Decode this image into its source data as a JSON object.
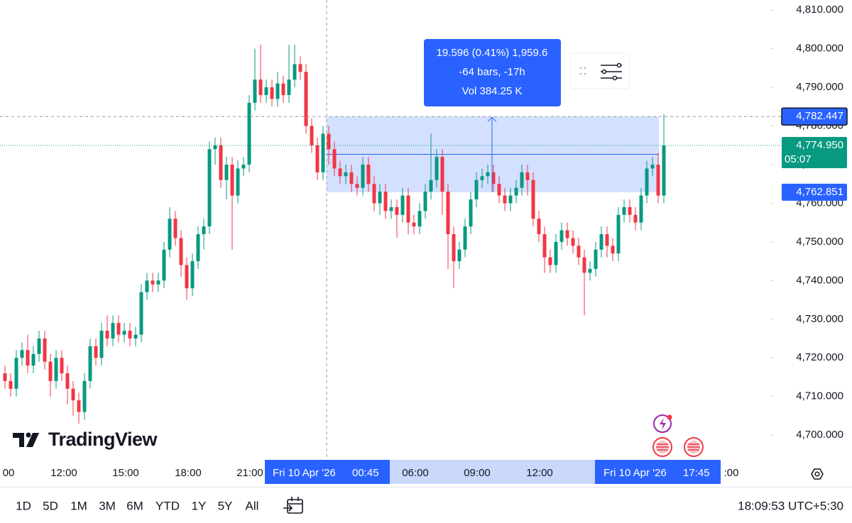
{
  "chart_data": {
    "type": "candlestick",
    "open": [
      4716,
      4714,
      4712,
      4720,
      4722,
      4718,
      4721,
      4725,
      4719,
      4714,
      4720,
      4716,
      4712,
      4709,
      4706,
      4714,
      4723,
      4720,
      4727,
      4725,
      4729,
      4726,
      4727,
      4725,
      4726,
      4737,
      4740,
      4739,
      4740,
      4748,
      4756,
      4751,
      4744,
      4738,
      4745,
      4752,
      4754,
      4774,
      4775,
      4766,
      4770,
      4762,
      4769,
      4770,
      4786,
      4792,
      4788,
      4790,
      4787,
      4791,
      4788,
      4792,
      4796,
      4794,
      4780,
      4775,
      4768,
      4778,
      4774,
      4769,
      4767,
      4768,
      4765,
      4764,
      4770,
      4765,
      4760,
      4763,
      4758,
      4759,
      4757,
      4762,
      4755,
      4754,
      4758,
      4763,
      4766,
      4772,
      4763,
      4752,
      4745,
      4748,
      4754,
      4761,
      4766,
      4767,
      4768,
      4765,
      4762,
      4760,
      4762,
      4764,
      4768,
      4766,
      4756,
      4752,
      4746,
      4744,
      4750,
      4753,
      4751,
      4749,
      4746,
      4742,
      4743,
      4748,
      4752,
      4749,
      4747,
      4757,
      4759,
      4757,
      4755,
      4762,
      4769,
      4770,
      4762
    ],
    "high": [
      4718,
      4716,
      4722,
      4724,
      4726,
      4723,
      4727,
      4727,
      4721,
      4722,
      4722,
      4718,
      4714,
      4711,
      4716,
      4725,
      4725,
      4729,
      4731,
      4731,
      4731,
      4729,
      4729,
      4728,
      4739,
      4742,
      4742,
      4742,
      4750,
      4759,
      4758,
      4753,
      4746,
      4747,
      4754,
      4756,
      4776,
      4777,
      4777,
      4772,
      4772,
      4771,
      4772,
      4788,
      4800,
      4801,
      4792,
      4792,
      4794,
      4793,
      4801,
      4801,
      4798,
      4796,
      4782,
      4777,
      4780,
      4780,
      4776,
      4771,
      4770,
      4770,
      4767,
      4772,
      4772,
      4767,
      4765,
      4765,
      4761,
      4761,
      4764,
      4764,
      4757,
      4760,
      4765,
      4778,
      4774,
      4774,
      4765,
      4754,
      4750,
      4756,
      4763,
      4768,
      4769,
      4770,
      4770,
      4767,
      4764,
      4764,
      4766,
      4770,
      4770,
      4768,
      4758,
      4754,
      4748,
      4752,
      4755,
      4755,
      4753,
      4751,
      4748,
      4745,
      4750,
      4754,
      4754,
      4751,
      4759,
      4761,
      4761,
      4759,
      4764,
      4771,
      4772,
      4773,
      4783
    ],
    "low": [
      4712,
      4710,
      4710,
      4718,
      4716,
      4716,
      4719,
      4717,
      4710,
      4712,
      4714,
      4708,
      4705,
      4703,
      4704,
      4712,
      4718,
      4718,
      4723,
      4723,
      4724,
      4724,
      4723,
      4723,
      4724,
      4735,
      4737,
      4737,
      4738,
      4746,
      4749,
      4741,
      4735,
      4736,
      4743,
      4748,
      4752,
      4770,
      4764,
      4761,
      4748,
      4760,
      4767,
      4768,
      4784,
      4786,
      4786,
      4785,
      4785,
      4786,
      4786,
      4790,
      4792,
      4778,
      4773,
      4766,
      4766,
      4770,
      4767,
      4765,
      4765,
      4763,
      4762,
      4762,
      4763,
      4758,
      4757,
      4756,
      4756,
      4751,
      4755,
      4752,
      4752,
      4752,
      4756,
      4761,
      4764,
      4757,
      4743,
      4738,
      4743,
      4746,
      4752,
      4759,
      4764,
      4765,
      4763,
      4760,
      4758,
      4758,
      4760,
      4762,
      4762,
      4754,
      4750,
      4742,
      4742,
      4742,
      4748,
      4749,
      4747,
      4744,
      4731,
      4740,
      4741,
      4746,
      4746,
      4745,
      4745,
      4755,
      4755,
      4753,
      4753,
      4760,
      4767,
      4760,
      4760
    ],
    "close": [
      4714,
      4712,
      4720,
      4722,
      4718,
      4721,
      4725,
      4719,
      4714,
      4720,
      4716,
      4712,
      4709,
      4706,
      4714,
      4723,
      4720,
      4727,
      4725,
      4729,
      4726,
      4727,
      4725,
      4726,
      4737,
      4740,
      4739,
      4740,
      4748,
      4756,
      4751,
      4744,
      4738,
      4745,
      4752,
      4754,
      4774,
      4775,
      4766,
      4770,
      4762,
      4769,
      4770,
      4786,
      4792,
      4788,
      4790,
      4787,
      4791,
      4788,
      4792,
      4796,
      4794,
      4780,
      4775,
      4768,
      4778,
      4774,
      4769,
      4767,
      4768,
      4765,
      4764,
      4770,
      4765,
      4760,
      4763,
      4758,
      4759,
      4757,
      4762,
      4755,
      4754,
      4758,
      4763,
      4766,
      4772,
      4763,
      4752,
      4745,
      4748,
      4754,
      4761,
      4766,
      4767,
      4768,
      4765,
      4762,
      4760,
      4762,
      4764,
      4768,
      4766,
      4756,
      4752,
      4746,
      4744,
      4750,
      4753,
      4751,
      4749,
      4746,
      4742,
      4743,
      4748,
      4752,
      4749,
      4747,
      4757,
      4759,
      4757,
      4755,
      4762,
      4769,
      4770,
      4762,
      4774.95
    ],
    "up_color": "#089981",
    "down_color": "#f23645",
    "ylim": [
      4693.6,
      4812.6
    ],
    "yticks": [
      {
        "value": 4700,
        "label": "4,700.000"
      },
      {
        "value": 4710,
        "label": "4,710.000"
      },
      {
        "value": 4720,
        "label": "4,720.000"
      },
      {
        "value": 4730,
        "label": "4,730.000"
      },
      {
        "value": 4740,
        "label": "4,740.000"
      },
      {
        "value": 4750,
        "label": "4,750.000"
      },
      {
        "value": 4760,
        "label": "4,760.000"
      },
      {
        "value": 4770,
        "label": "4,770.000"
      },
      {
        "value": 4780,
        "label": "4,780.000"
      },
      {
        "value": 4790,
        "label": "4,790.000"
      },
      {
        "value": 4800,
        "label": "4,800.000"
      },
      {
        "value": 4810,
        "label": "4,810.000"
      }
    ],
    "x_labels": [
      "00",
      "12:00",
      "15:00",
      "18:00",
      "21:00",
      "06:00",
      "09:00",
      "12:00",
      ":00"
    ],
    "current_price": {
      "value": 4774.95,
      "label": "4,774.950"
    },
    "countdown": "05:07",
    "measure": {
      "high": {
        "value": 4782.447,
        "label": "4,782.447"
      },
      "low": {
        "value": 4762.851,
        "label": "4,762.851"
      },
      "start_date": "Fri 10 Apr '26",
      "start_time": "00:45",
      "end_date": "Fri 10 Apr '26",
      "end_time": "17:45",
      "lines": [
        "19.596 (0.41%) 1,959.6",
        "-64 bars, -17h",
        "Vol 384.25 K"
      ]
    }
  },
  "logo": "TradingView",
  "toolbar": {
    "ranges": [
      "1D",
      "5D",
      "1M",
      "3M",
      "6M",
      "YTD",
      "1Y",
      "5Y",
      "All"
    ],
    "clock": "18:09:53 UTC+5:30"
  }
}
